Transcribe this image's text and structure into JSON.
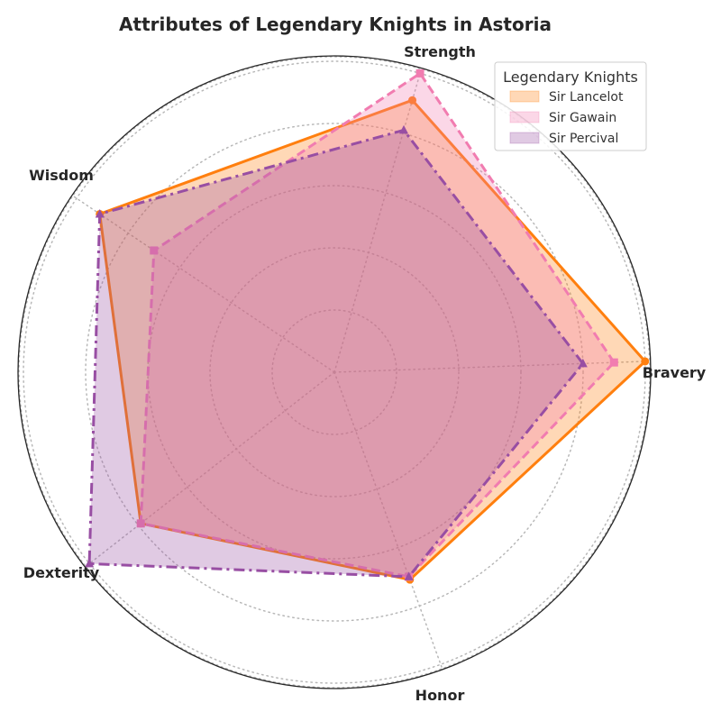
{
  "chart_data": {
    "type": "radar",
    "title": "Attributes of Legendary Knights in Astoria",
    "categories": [
      "Bravery",
      "Strength",
      "Wisdom",
      "Dexterity",
      "Honor"
    ],
    "rmax": 10,
    "grid": true,
    "legend": {
      "title": "Legendary Knights",
      "placement": "top-right"
    },
    "series": [
      {
        "name": "Sir Lancelot",
        "values": [
          10,
          9.1,
          9.1,
          7.9,
          7.1
        ],
        "color": "#ff7f0e",
        "linestyle": "solid",
        "marker": "circle"
      },
      {
        "name": "Sir Gawain",
        "values": [
          9.0,
          10.0,
          7.0,
          7.9,
          7.0
        ],
        "color": "#f17cb0",
        "linestyle": "dashed",
        "marker": "square"
      },
      {
        "name": "Sir Percival",
        "values": [
          8.0,
          8.1,
          9.1,
          10.0,
          7.0
        ],
        "color": "#984ea3",
        "linestyle": "dashdot",
        "marker": "triangle"
      }
    ]
  }
}
